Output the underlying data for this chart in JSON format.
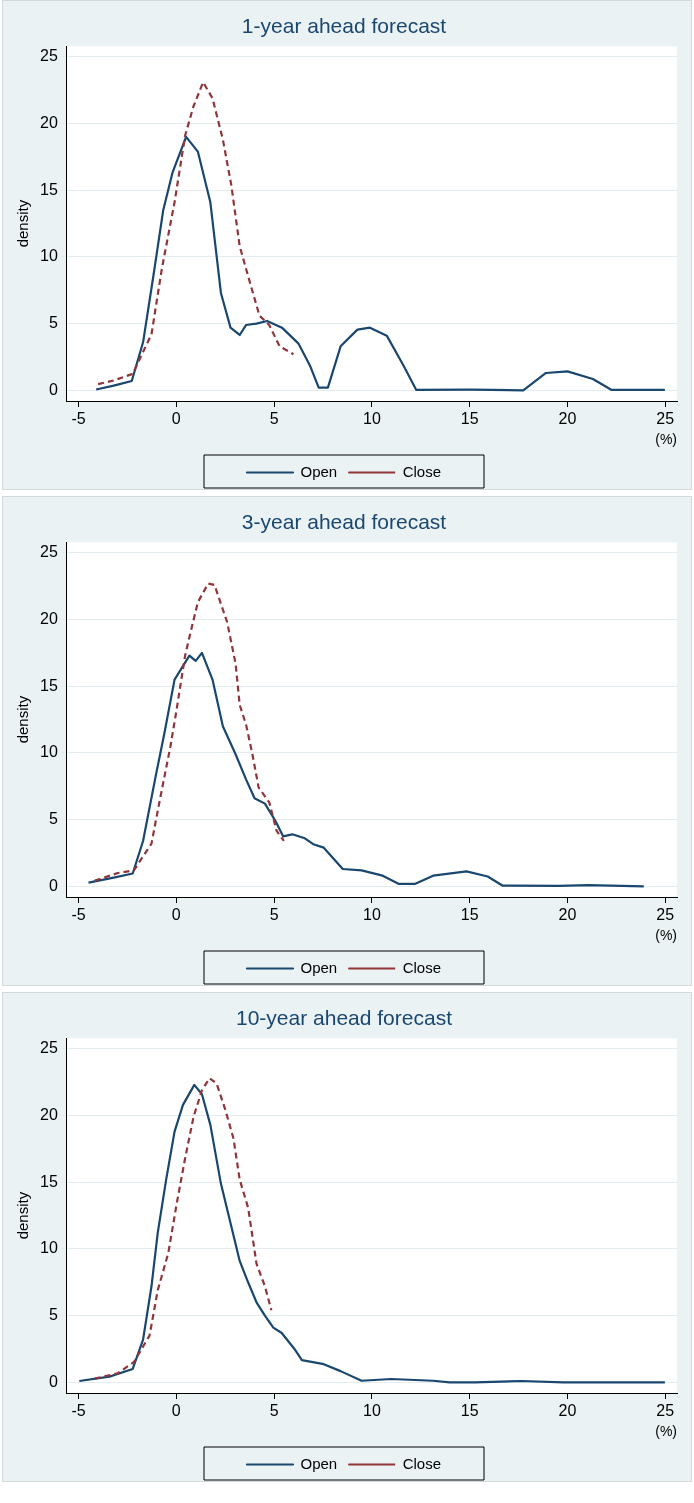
{
  "chart_data": [
    {
      "type": "line",
      "title": "1-year ahead forecast",
      "xlabel": "(%)",
      "ylabel": "density",
      "xlim": [
        -5.6,
        25.6
      ],
      "ylim": [
        -0.8,
        25.8
      ],
      "xticks": [
        -5,
        0,
        5,
        10,
        15,
        20,
        25
      ],
      "yticks": [
        0,
        5,
        10,
        15,
        20,
        25
      ],
      "grid": "y",
      "legend": "bottom",
      "marker": "none",
      "series": [
        {
          "name": "Open",
          "color": "#1a476f",
          "line_style": "solid",
          "x": [
            -4.1,
            -3.2,
            -2.28,
            -1.7,
            -1.16,
            -0.67,
            -0.2,
            0.5,
            1.1,
            1.74,
            2.28,
            2.77,
            3.24,
            3.57,
            4.1,
            4.64,
            5.4,
            6.25,
            6.85,
            7.28,
            7.75,
            8.4,
            9.26,
            9.9,
            10.76,
            11.6,
            12.27,
            15.06,
            17.74,
            18.9,
            20.0,
            21.3,
            22.26,
            24.98
          ],
          "values": [
            0.06,
            0.35,
            0.7,
            3.6,
            8.7,
            13.5,
            16.3,
            19.0,
            17.9,
            14.1,
            7.3,
            4.7,
            4.15,
            4.9,
            5.0,
            5.2,
            4.7,
            3.5,
            1.8,
            0.2,
            0.2,
            3.3,
            4.55,
            4.7,
            4.1,
            1.9,
            0.03,
            0.05,
            0.0,
            1.3,
            1.42,
            0.85,
            0.03,
            0.03
          ]
        },
        {
          "name": "Close",
          "color": "#90353b",
          "line_style": "dashed",
          "x": [
            -4.0,
            -3.2,
            -2.23,
            -1.27,
            -0.73,
            -0.09,
            0.45,
            0.88,
            1.37,
            1.85,
            2.38,
            2.81,
            3.24,
            3.78,
            4.25,
            4.75,
            5.28,
            5.99
          ],
          "values": [
            0.46,
            0.74,
            1.24,
            4.2,
            9.2,
            14.1,
            19.1,
            21.3,
            23.1,
            21.9,
            18.8,
            15.4,
            10.8,
            8.0,
            5.6,
            4.9,
            3.3,
            2.7
          ]
        }
      ]
    },
    {
      "type": "line",
      "title": "3-year ahead forecast",
      "xlabel": "(%)",
      "ylabel": "density",
      "xlim": [
        -5.6,
        25.6
      ],
      "ylim": [
        -0.8,
        25.8
      ],
      "xticks": [
        -5,
        0,
        5,
        10,
        15,
        20,
        25
      ],
      "yticks": [
        0,
        5,
        10,
        15,
        20,
        25
      ],
      "grid": "y",
      "legend": "bottom",
      "marker": "none",
      "series": [
        {
          "name": "Open",
          "color": "#1a476f",
          "line_style": "solid",
          "x": [
            -4.49,
            -3.2,
            -2.23,
            -1.7,
            -1.05,
            -0.62,
            -0.09,
            0.67,
            0.99,
            1.31,
            1.85,
            2.38,
            3.03,
            3.57,
            4.0,
            4.53,
            5.07,
            5.46,
            5.93,
            6.57,
            7.0,
            7.54,
            8.51,
            9.47,
            10.55,
            11.36,
            12.22,
            13.13,
            14.84,
            15.92,
            16.67,
            19.57,
            21.07,
            23.9
          ],
          "values": [
            0.28,
            0.65,
            0.96,
            3.4,
            8.3,
            11.4,
            15.5,
            17.3,
            16.9,
            17.5,
            15.5,
            12.0,
            9.9,
            8.0,
            6.6,
            6.2,
            4.9,
            3.75,
            3.9,
            3.6,
            3.16,
            2.9,
            1.3,
            1.2,
            0.8,
            0.19,
            0.19,
            0.8,
            1.12,
            0.74,
            0.06,
            0.03,
            0.09,
            0.0
          ]
        },
        {
          "name": "Close",
          "color": "#90353b",
          "line_style": "dashed",
          "x": [
            -4.17,
            -2.99,
            -2.17,
            -1.27,
            -0.84,
            -0.3,
            0.02,
            0.45,
            0.77,
            1.1,
            1.63,
            1.95,
            2.6,
            3.03,
            3.24,
            3.57,
            3.89,
            4.21,
            4.75,
            5.13,
            5.5
          ],
          "values": [
            0.43,
            1.0,
            1.2,
            3.2,
            6.5,
            10.5,
            13.3,
            17.3,
            19.3,
            21.3,
            22.7,
            22.6,
            19.8,
            16.7,
            13.6,
            12.1,
            9.9,
            7.4,
            6.3,
            4.15,
            3.4
          ]
        }
      ]
    },
    {
      "type": "line",
      "title": "10-year ahead forecast",
      "xlabel": "(%)",
      "ylabel": "density",
      "xlim": [
        -5.6,
        25.6
      ],
      "ylim": [
        -0.8,
        25.8
      ],
      "xticks": [
        -5,
        0,
        5,
        10,
        15,
        20,
        25
      ],
      "yticks": [
        0,
        5,
        10,
        15,
        20,
        25
      ],
      "grid": "y",
      "legend": "bottom",
      "marker": "none",
      "series": [
        {
          "name": "Open",
          "color": "#1a476f",
          "line_style": "solid",
          "x": [
            -4.96,
            -3.42,
            -2.23,
            -1.7,
            -1.27,
            -0.95,
            -0.52,
            -0.09,
            0.34,
            0.92,
            1.31,
            1.74,
            2.28,
            2.81,
            3.24,
            3.67,
            4.1,
            4.53,
            4.96,
            5.39,
            6.04,
            6.42,
            7.54,
            8.4,
            9.47,
            10.98,
            13.13,
            13.98,
            15.27,
            17.64,
            19.78,
            24.98
          ],
          "values": [
            0.1,
            0.43,
            1.0,
            3.2,
            7.2,
            11.2,
            15.2,
            18.8,
            20.8,
            22.3,
            21.6,
            19.3,
            14.9,
            11.7,
            9.1,
            7.5,
            6.0,
            5.0,
            4.1,
            3.7,
            2.5,
            1.67,
            1.36,
            0.84,
            0.12,
            0.25,
            0.12,
            0.0,
            0.0,
            0.1,
            0.0,
            0.0
          ]
        },
        {
          "name": "Close",
          "color": "#90353b",
          "line_style": "dashed",
          "x": [
            -4.17,
            -2.99,
            -2.17,
            -1.37,
            -0.95,
            -0.41,
            0.02,
            0.45,
            0.88,
            1.31,
            1.7,
            2.06,
            2.49,
            2.92,
            3.24,
            3.67,
            4.1,
            4.53,
            4.86
          ],
          "values": [
            0.28,
            0.68,
            1.52,
            3.5,
            6.9,
            9.7,
            13.4,
            16.8,
            19.9,
            21.9,
            22.8,
            22.4,
            20.5,
            18.3,
            15.2,
            13.1,
            8.9,
            7.2,
            5.4
          ]
        }
      ]
    }
  ]
}
